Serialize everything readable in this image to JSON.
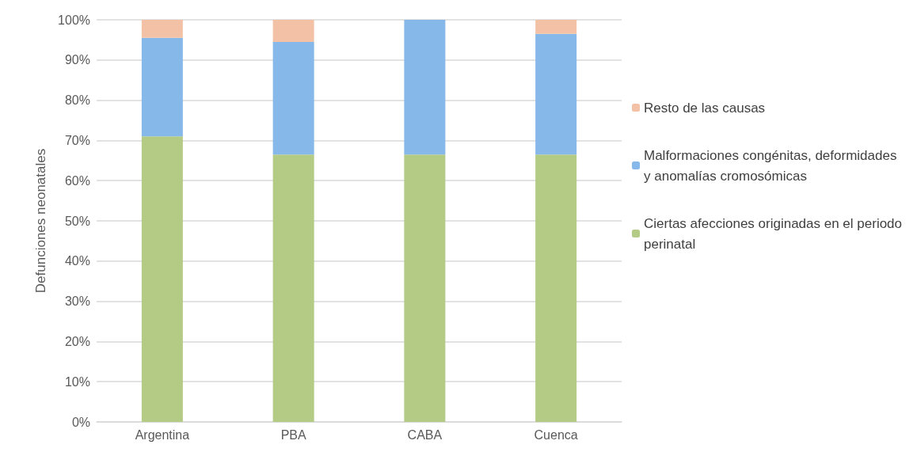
{
  "chart_data": {
    "type": "bar",
    "stacked": true,
    "ylabel": "Defunciones neonatales",
    "categories": [
      "Argentina",
      "PBA",
      "CABA",
      "Cuenca"
    ],
    "series": [
      {
        "name": "Ciertas afecciones originadas en el periodo perinatal",
        "color": "#b3cb84",
        "values": [
          71,
          66.5,
          66.5,
          66.5
        ]
      },
      {
        "name": "Malformaciones congénitas, deformidades y anomalías cromosómicas",
        "color": "#86b8ea",
        "values": [
          24.5,
          28,
          33.5,
          30
        ]
      },
      {
        "name": "Resto de las causas",
        "color": "#f3c2a6",
        "values": [
          4.5,
          5.5,
          0,
          3.5
        ]
      }
    ],
    "ylim": [
      0,
      100
    ],
    "yticks": [
      {
        "value": 0,
        "label": "0%"
      },
      {
        "value": 10,
        "label": "10%"
      },
      {
        "value": 20,
        "label": "20%"
      },
      {
        "value": 30,
        "label": "30%"
      },
      {
        "value": 40,
        "label": "40%"
      },
      {
        "value": 50,
        "label": "50%"
      },
      {
        "value": 60,
        "label": "60%"
      },
      {
        "value": 70,
        "label": "70%"
      },
      {
        "value": 80,
        "label": "80%"
      },
      {
        "value": 90,
        "label": "90%"
      },
      {
        "value": 100,
        "label": "100%"
      }
    ],
    "grid": "y",
    "legend": "right"
  }
}
